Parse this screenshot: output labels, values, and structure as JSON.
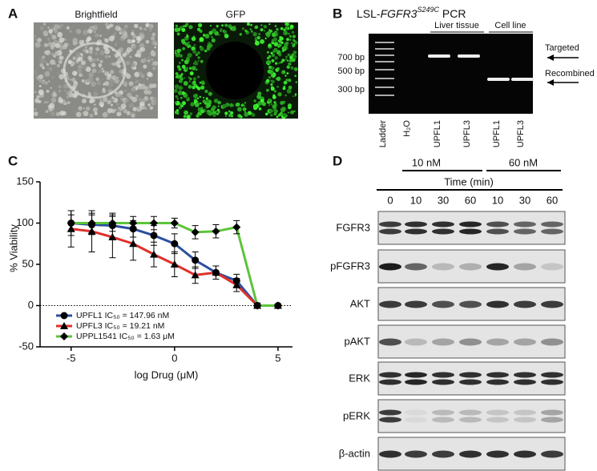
{
  "panel_a": {
    "label": "A",
    "images": [
      "Brightfield",
      "GFP"
    ]
  },
  "panel_b": {
    "label": "B",
    "title_prefix": "LSL-",
    "title_gene": "FGFR3",
    "title_superscript": "S249C",
    "title_suffix": " PCR",
    "groups": [
      "Liver tissue",
      "Cell line"
    ],
    "size_markers": [
      "700 bp",
      "500 bp",
      "300 bp"
    ],
    "lanes": [
      "Ladder",
      "H₂O",
      "UPFL1",
      "UPFL3",
      "UPFL1",
      "UPFL3"
    ],
    "band_labels": [
      "Targeted",
      "Recombined"
    ]
  },
  "chart_data": {
    "type": "line",
    "panel_label": "C",
    "y_label": "% Viability",
    "x_label": "log Drug (μM)",
    "x": [
      -5,
      -4,
      -3,
      -2,
      -1,
      0,
      1,
      2,
      3,
      4,
      5
    ],
    "series": [
      {
        "name": "UPFL1 IC₅₀ = 147.96 nM",
        "color": "#2b4fa0",
        "marker": "circle",
        "values": [
          100,
          98,
          97,
          93,
          85,
          75,
          55,
          40,
          30,
          0,
          0
        ],
        "errors": [
          10,
          12,
          15,
          10,
          12,
          12,
          10,
          8,
          8,
          3,
          2
        ]
      },
      {
        "name": "UPFL3 IC₅₀ = 19.21 nM",
        "color": "#e0302a",
        "marker": "triangle",
        "values": [
          93,
          90,
          83,
          75,
          62,
          50,
          37,
          40,
          25,
          0,
          0
        ],
        "errors": [
          22,
          25,
          25,
          20,
          15,
          15,
          10,
          8,
          8,
          3,
          2
        ]
      },
      {
        "name": "UPPL1541 IC₅₀ = 1.63 μM",
        "color": "#5cc43a",
        "marker": "diamond",
        "values": [
          100,
          100,
          100,
          100,
          100,
          100,
          89,
          90,
          95,
          0,
          0
        ],
        "errors": [
          15,
          12,
          10,
          8,
          8,
          6,
          8,
          8,
          8,
          3,
          2
        ]
      }
    ],
    "xlim": [
      -6.5,
      5.7
    ],
    "ylim": [
      -50,
      150
    ],
    "xticks": [
      -5,
      0,
      5
    ],
    "yticks": [
      -50,
      0,
      50,
      100,
      150
    ],
    "marker_color": "#000000",
    "zero_line": true
  },
  "panel_d": {
    "label": "D",
    "concentrations": [
      "10 nM",
      "60 nM"
    ],
    "time_label": "Time (min)",
    "times": [
      "0",
      "10",
      "30",
      "60",
      "10",
      "30",
      "60"
    ],
    "proteins": [
      "FGFR3",
      "pFGFR3",
      "AKT",
      "pAKT",
      "ERK",
      "pERK",
      "β-actin"
    ]
  }
}
